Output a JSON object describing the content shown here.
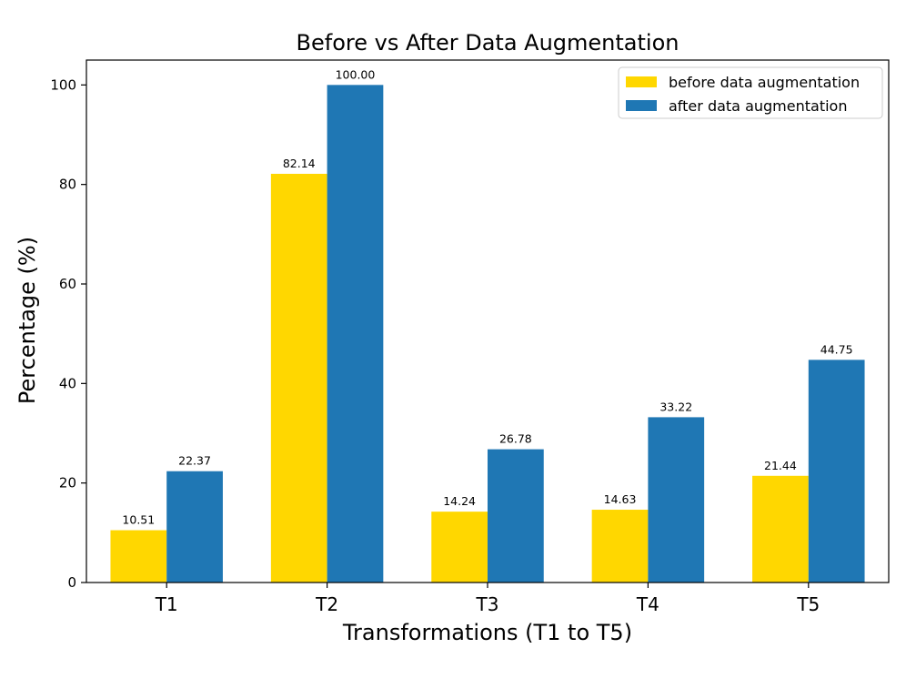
{
  "chart_data": {
    "type": "bar",
    "title": "Before vs After Data Augmentation",
    "xlabel": "Transformations (T1 to T5)",
    "ylabel": "Percentage (%)",
    "categories": [
      "T1",
      "T2",
      "T3",
      "T4",
      "T5"
    ],
    "series": [
      {
        "name": "before data augmentation",
        "color": "#FFD700",
        "values": [
          10.51,
          82.14,
          14.24,
          14.63,
          21.44
        ],
        "labels": [
          "10.51",
          "82.14",
          "14.24",
          "14.63",
          "21.44"
        ]
      },
      {
        "name": "after data augmentation",
        "color": "#1F77B4",
        "values": [
          22.37,
          100.0,
          26.78,
          33.22,
          44.75
        ],
        "labels": [
          "22.37",
          "100.00",
          "26.78",
          "33.22",
          "44.75"
        ]
      }
    ],
    "ylim": [
      0,
      105
    ],
    "yticks": [
      0,
      20,
      40,
      60,
      80,
      100
    ],
    "grid": false,
    "legend_position": "top-right"
  }
}
